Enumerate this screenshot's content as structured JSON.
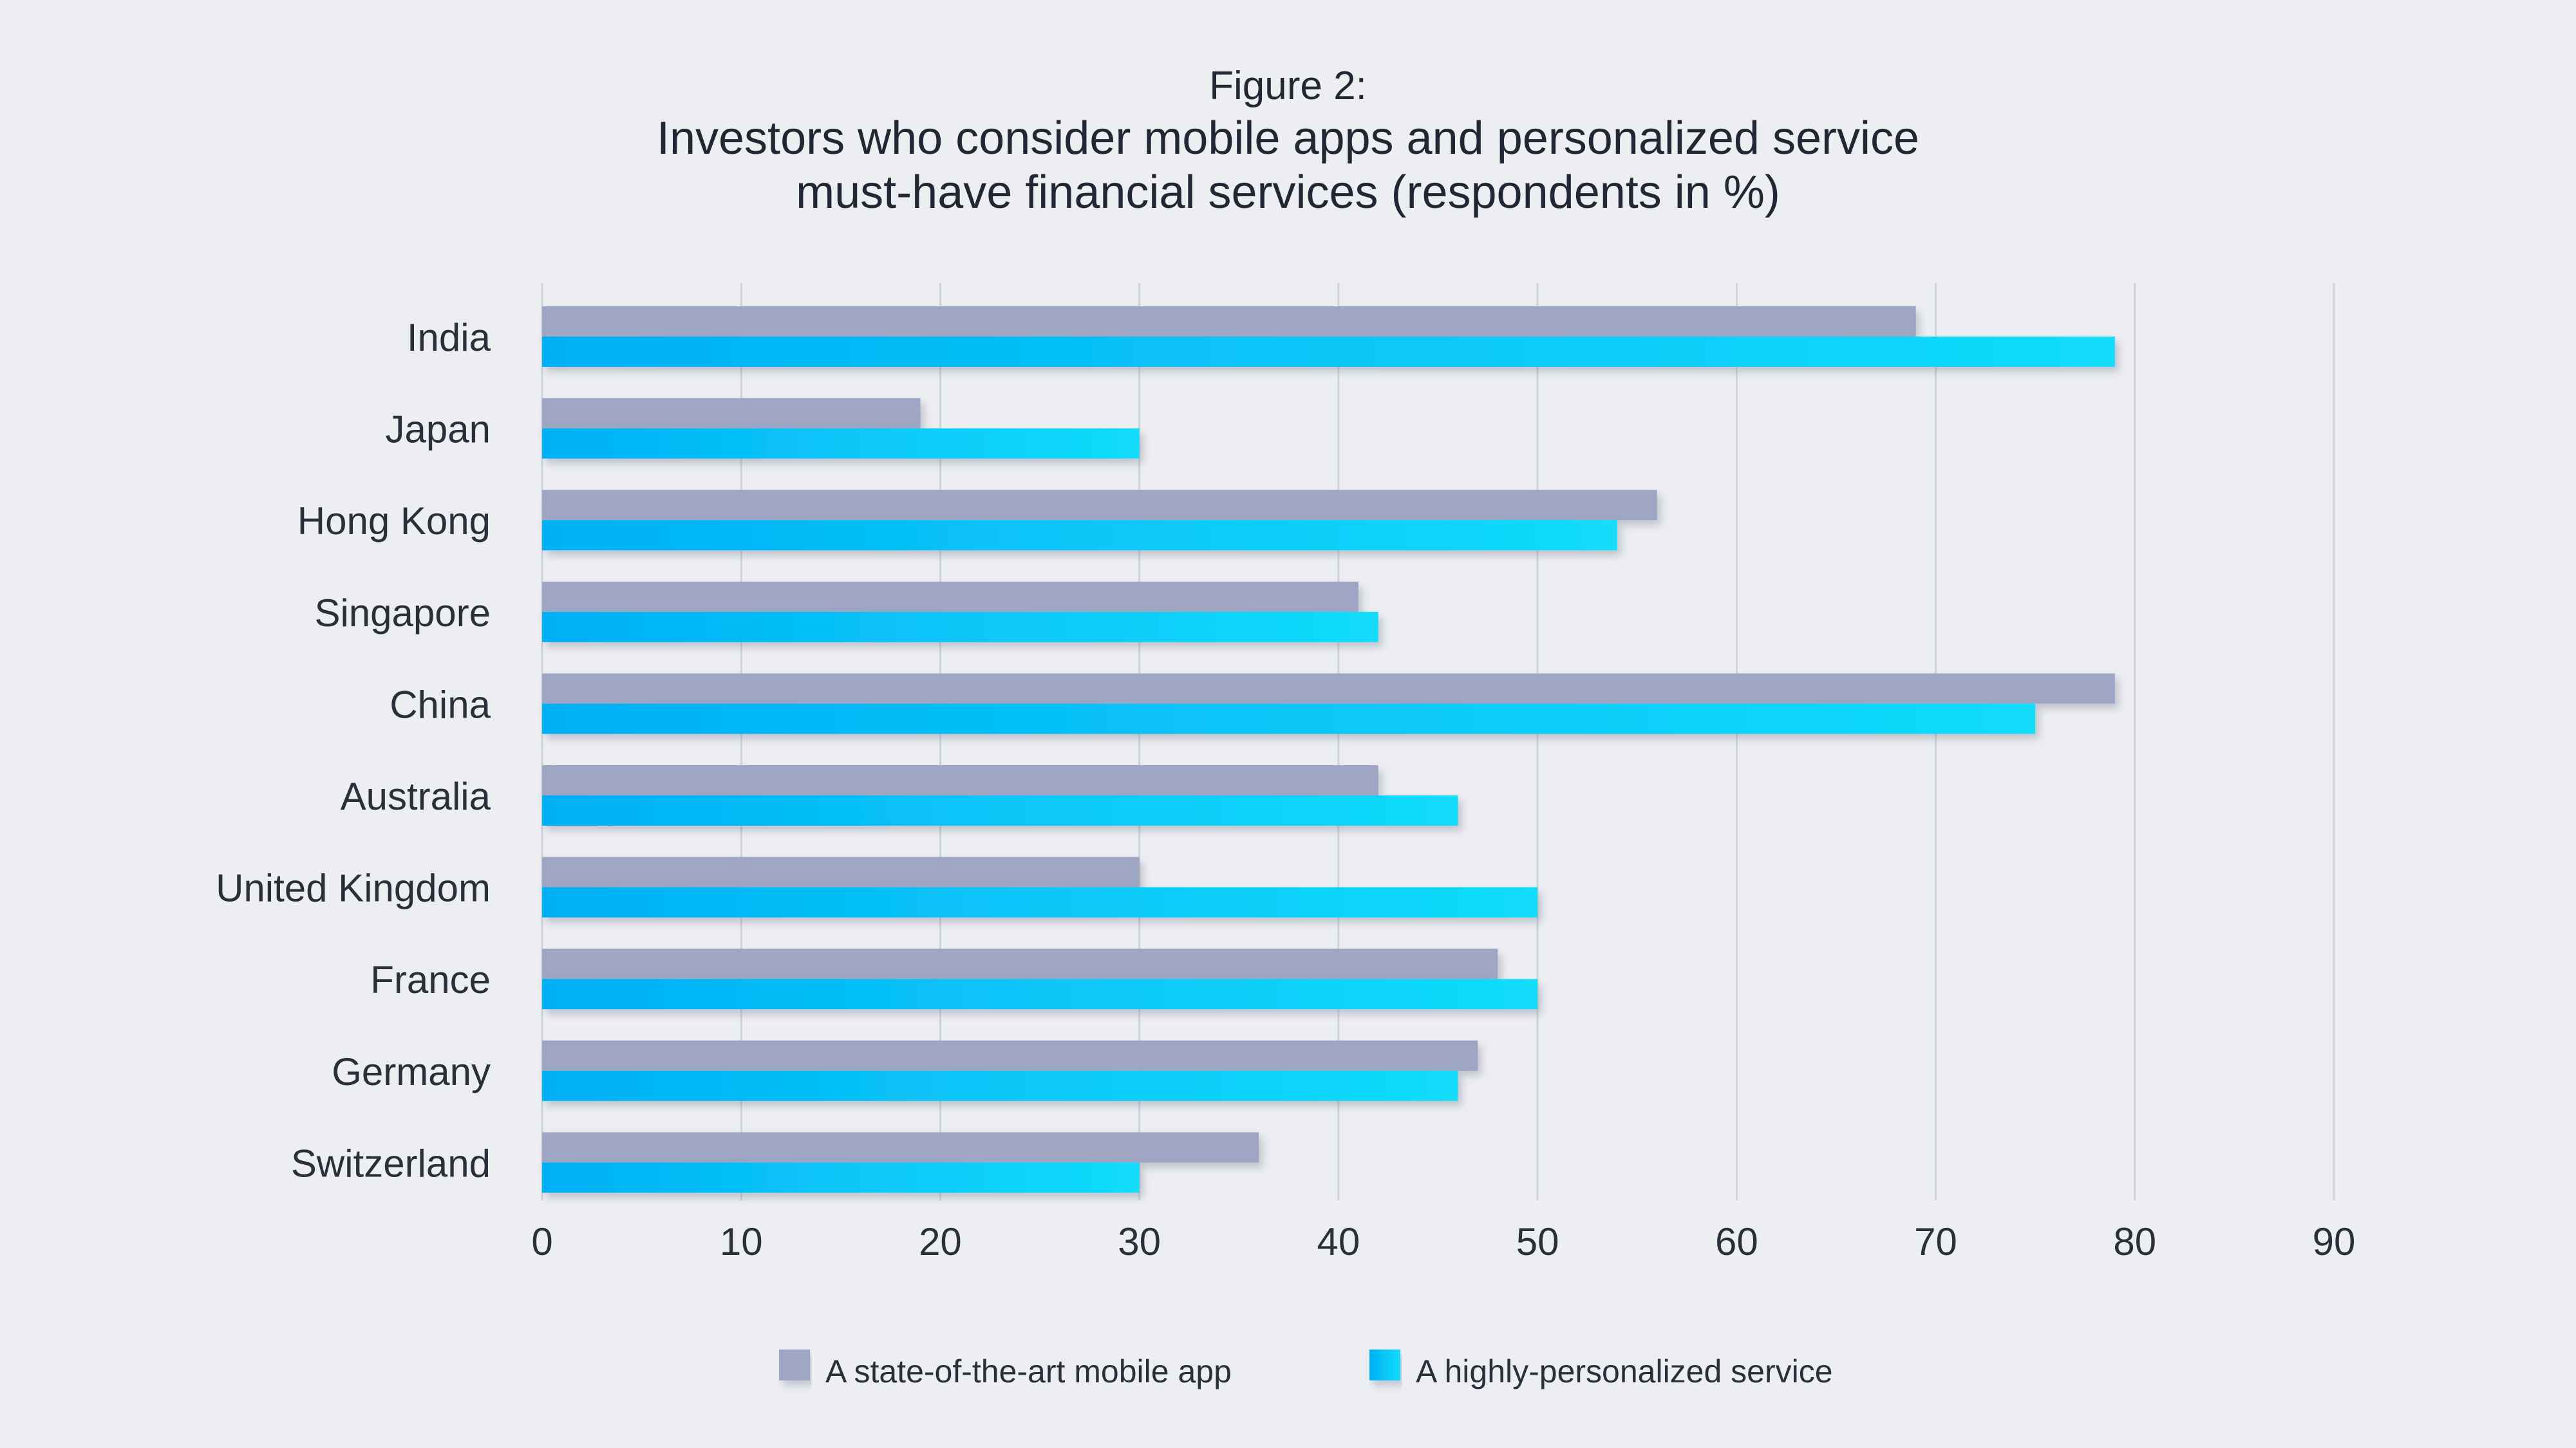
{
  "title": {
    "figure_label": "Figure 2:",
    "line1": "Investors who consider mobile apps and personalized service",
    "line2": "must-have financial services (respondents in %)"
  },
  "colors": {
    "background": "#eceef2",
    "mobile_app": "#9ea6c4",
    "personalized_start": "#00b0f5",
    "personalized_end": "#12dcfb",
    "gridline": "#cfd3da",
    "text": "#2b2f3a"
  },
  "chart_data": {
    "type": "bar",
    "orientation": "horizontal",
    "title": "Investors who consider mobile apps and personalized service must-have financial services (respondents in %)",
    "xlabel": "",
    "ylabel": "",
    "xlim": [
      0,
      90
    ],
    "xticks": [
      0,
      10,
      20,
      30,
      40,
      50,
      60,
      70,
      80,
      90
    ],
    "grid": true,
    "legend_position": "bottom",
    "categories": [
      "India",
      "Japan",
      "Hong Kong",
      "Singapore",
      "China",
      "Australia",
      "United Kingdom",
      "France",
      "Germany",
      "Switzerland"
    ],
    "series": [
      {
        "name": "A state-of-the-art mobile app",
        "values": [
          69,
          19,
          56,
          41,
          79,
          42,
          30,
          48,
          47,
          36
        ]
      },
      {
        "name": "A highly-personalized service",
        "values": [
          79,
          30,
          54,
          42,
          75,
          46,
          50,
          50,
          46,
          30
        ]
      }
    ]
  }
}
